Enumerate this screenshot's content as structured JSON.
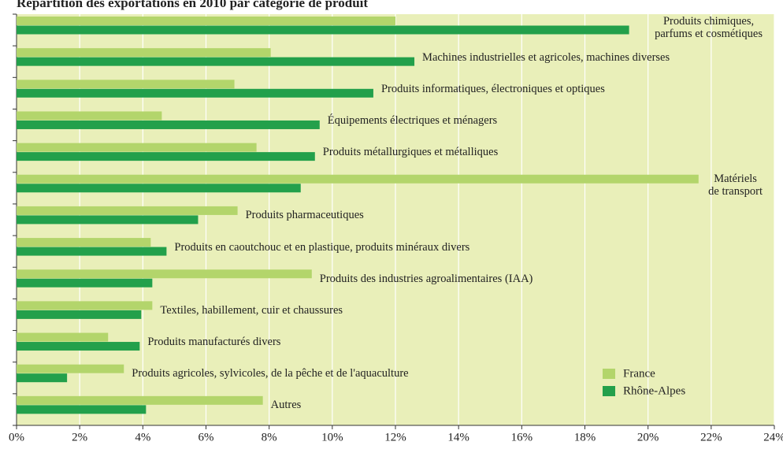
{
  "chart_data": {
    "type": "hbar",
    "title": "Répartition des exportations en 2010 par catégorie de produit",
    "categories": [
      "Produits chimiques,\nparfums et cosmétiques",
      "Machines industrielles et agricoles, machines diverses",
      "Produits informatiques, électroniques et optiques",
      "Équipements électriques et ménagers",
      "Produits métallurgiques et métalliques",
      "Matériels\nde transport",
      "Produits pharmaceutiques",
      "Produits en caoutchouc et en plastique, produits minéraux divers",
      "Produits des industries agroalimentaires (IAA)",
      "Textiles, habillement, cuir et chaussures",
      "Produits manufacturés divers",
      "Produits agricoles, sylvicoles, de la pêche et de l'aquaculture",
      "Autres"
    ],
    "series": [
      {
        "name": "France",
        "color": "#b3d56b",
        "values": [
          12.0,
          8.05,
          6.9,
          4.6,
          7.6,
          21.6,
          7.0,
          4.25,
          9.35,
          4.3,
          2.9,
          3.4,
          7.8
        ]
      },
      {
        "name": "Rhône-Alpes",
        "color": "#23a04b",
        "values": [
          19.4,
          12.6,
          11.3,
          9.6,
          9.45,
          9.0,
          5.75,
          4.75,
          4.3,
          3.95,
          3.9,
          1.6,
          4.1
        ]
      }
    ],
    "xlim": [
      0,
      24
    ],
    "xticks": [
      {
        "value": 0,
        "label": "0%"
      },
      {
        "value": 2,
        "label": "2%"
      },
      {
        "value": 4,
        "label": "4%"
      },
      {
        "value": 6,
        "label": "6%"
      },
      {
        "value": 8,
        "label": "8%"
      },
      {
        "value": 10,
        "label": "10%"
      },
      {
        "value": 12,
        "label": "12%"
      },
      {
        "value": 14,
        "label": "14%"
      },
      {
        "value": 16,
        "label": "16%"
      },
      {
        "value": 18,
        "label": "18%"
      },
      {
        "value": 20,
        "label": "20%"
      },
      {
        "value": 22,
        "label": "22%"
      },
      {
        "value": 24,
        "label": "24%"
      }
    ],
    "grid": true,
    "legend": "lower right"
  }
}
